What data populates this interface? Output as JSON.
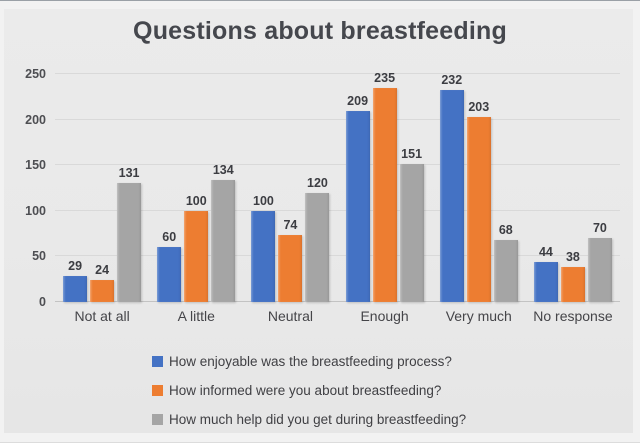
{
  "title": "Questions about breastfeeding",
  "colors": {
    "series_blue": "#4472c4",
    "series_orange": "#ed7d31",
    "series_gray": "#a5a5a5",
    "chart_background": "#e9e9e9",
    "gridline": "#d9d9d9",
    "title_text": "#45474d",
    "label_text": "#3c3d42"
  },
  "chart_data": {
    "type": "bar",
    "title": "Questions about breastfeeding",
    "categories": [
      "Not at all",
      "A little",
      "Neutral",
      "Enough",
      "Very much",
      "No response"
    ],
    "series": [
      {
        "name": "How enjoyable was the breastfeeding process?",
        "color": "#4472c4",
        "values": [
          29,
          60,
          100,
          209,
          232,
          44
        ]
      },
      {
        "name": "How informed were you about breastfeeding?",
        "color": "#ed7d31",
        "values": [
          24,
          100,
          74,
          235,
          203,
          38
        ]
      },
      {
        "name": "How much help did you get during breastfeeding?",
        "color": "#a5a5a5",
        "values": [
          131,
          134,
          120,
          151,
          68,
          70
        ]
      }
    ],
    "y_ticks": [
      0,
      50,
      100,
      150,
      200,
      250
    ],
    "ylim": [
      0,
      250
    ],
    "grid": true,
    "data_labels": true,
    "legend_position": "bottom-left",
    "xlabel": "",
    "ylabel": ""
  }
}
